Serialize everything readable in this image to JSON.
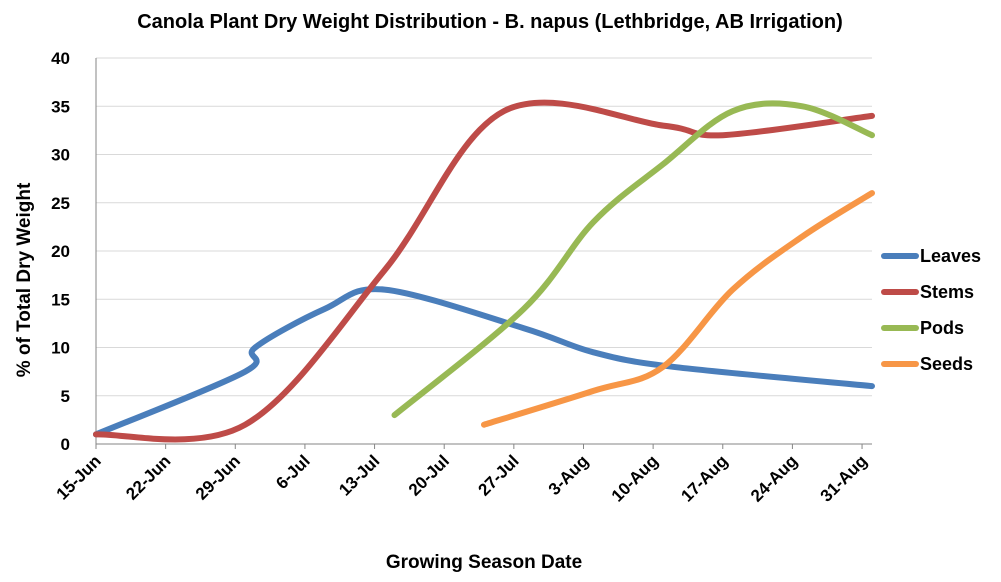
{
  "chart_data": {
    "type": "line",
    "title": "Canola Plant Dry Weight Distribution - B. napus (Lethbridge, AB Irrigation)",
    "xlabel": "Growing Season Date",
    "ylabel": "% of Total Dry Weight",
    "ylim": [
      0,
      40
    ],
    "yticks": [
      0,
      5,
      10,
      15,
      20,
      25,
      30,
      35,
      40
    ],
    "x_tick_labels": [
      "15-Jun",
      "22-Jun",
      "29-Jun",
      "6-Jul",
      "13-Jul",
      "20-Jul",
      "27-Jul",
      "3-Aug",
      "10-Aug",
      "17-Aug",
      "24-Aug",
      "31-Aug"
    ],
    "x_unit": "days since 15-Jun",
    "xlim": [
      0,
      78
    ],
    "legend_position": "right",
    "series": [
      {
        "name": "Leaves",
        "color": "#4a7ebb",
        "x": [
          0,
          15,
          16,
          23,
          29,
          43,
          50,
          58,
          78
        ],
        "y": [
          1,
          7.5,
          10,
          14,
          16,
          12,
          9.5,
          8,
          6
        ]
      },
      {
        "name": "Stems",
        "color": "#be4b48",
        "x": [
          0,
          15,
          29,
          41,
          57,
          63,
          78
        ],
        "y": [
          1,
          2,
          18,
          34.5,
          33,
          32,
          34
        ]
      },
      {
        "name": "Pods",
        "color": "#98b954",
        "x": [
          30,
          43,
          50,
          57,
          64,
          71,
          78
        ],
        "y": [
          3,
          14,
          23,
          29,
          34.5,
          35,
          32
        ]
      },
      {
        "name": "Seeds",
        "color": "#f79646",
        "x": [
          39,
          50,
          57,
          64,
          71,
          78
        ],
        "y": [
          2,
          5.5,
          8,
          16,
          21.5,
          26
        ]
      }
    ]
  }
}
